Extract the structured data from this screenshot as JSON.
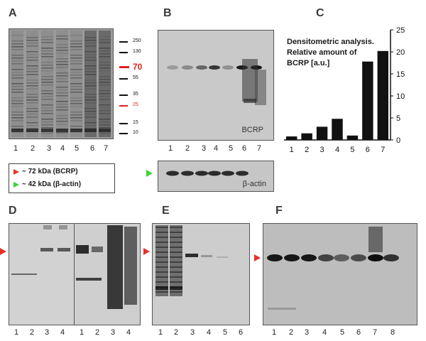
{
  "panels": {
    "A": {
      "label": "A",
      "lanes": [
        "1",
        "2",
        "3",
        "4",
        "5",
        "6",
        "7"
      ]
    },
    "B": {
      "label": "B",
      "lanes": [
        "1",
        "2",
        "3",
        "4",
        "5",
        "6",
        "7"
      ],
      "blot_label": "BCRP",
      "actin_label": "β-actin"
    },
    "C": {
      "label": "C"
    },
    "D": {
      "label": "D",
      "lanes_left": [
        "1",
        "2",
        "3",
        "4"
      ],
      "lanes_right": [
        "1",
        "2",
        "3",
        "4"
      ]
    },
    "E": {
      "label": "E",
      "lanes": [
        "1",
        "2",
        "3",
        "4",
        "5",
        "6"
      ]
    },
    "F": {
      "label": "F",
      "lanes": [
        "1",
        "2",
        "3",
        "4",
        "5",
        "6",
        "7",
        "8"
      ]
    }
  },
  "marker": {
    "ladder": [
      {
        "kda": "250",
        "color": "#111111",
        "highlight": false
      },
      {
        "kda": "130",
        "color": "#111111",
        "highlight": false
      },
      {
        "kda": "70",
        "color": "#e02020",
        "highlight": true
      },
      {
        "kda": "55",
        "color": "#111111",
        "highlight": false
      },
      {
        "kda": "35",
        "color": "#111111",
        "highlight": false
      },
      {
        "kda": "25",
        "color": "#e02020",
        "highlight": false
      },
      {
        "kda": "15",
        "color": "#111111",
        "highlight": false
      },
      {
        "kda": "10",
        "color": "#111111",
        "highlight": false
      }
    ]
  },
  "legend": {
    "items": [
      {
        "text": "~ 72 kDa (BCRP)",
        "arrow_color": "#e8302a"
      },
      {
        "text": "~ 42 kDa (β-actin)",
        "arrow_color": "#3fd23a"
      }
    ]
  },
  "chart_data": {
    "type": "bar",
    "title": "Densitometric analysis. Relative amount of BCRP [a.u.]",
    "categories": [
      "1",
      "2",
      "3",
      "4",
      "5",
      "6",
      "7"
    ],
    "values": [
      0.8,
      1.5,
      3,
      4.8,
      1,
      17.8,
      20.2
    ],
    "ylim": [
      0,
      25
    ],
    "yticks": [
      "0",
      "5",
      "10",
      "15",
      "20",
      "25"
    ],
    "bar_color": "#111111",
    "grid": false
  },
  "colors": {
    "red_arrow": "#e8302a",
    "green_arrow": "#3fd23a"
  }
}
